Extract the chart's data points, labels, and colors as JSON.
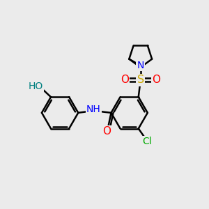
{
  "bg_color": "#ebebeb",
  "bond_color": "#000000",
  "bond_width": 1.8,
  "atom_colors": {
    "N": "#0000ff",
    "O": "#ff0000",
    "S": "#ccaa00",
    "Cl": "#00aa00",
    "HO": "#008080"
  },
  "font_size": 9.5,
  "figsize": [
    3.0,
    3.0
  ],
  "dpi": 100
}
